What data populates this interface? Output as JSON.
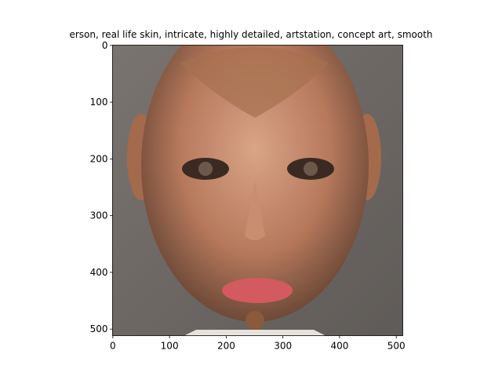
{
  "chart_data": {
    "type": "image",
    "title": "erson,  real life skin, intricate, highly detailed, artstation, concept art, smooth",
    "xlim": [
      -0.5,
      511.5
    ],
    "ylim": [
      511.5,
      -0.5
    ],
    "xticks": [
      0,
      100,
      200,
      300,
      400,
      500
    ],
    "yticks": [
      0,
      100,
      200,
      300,
      400,
      500
    ]
  }
}
